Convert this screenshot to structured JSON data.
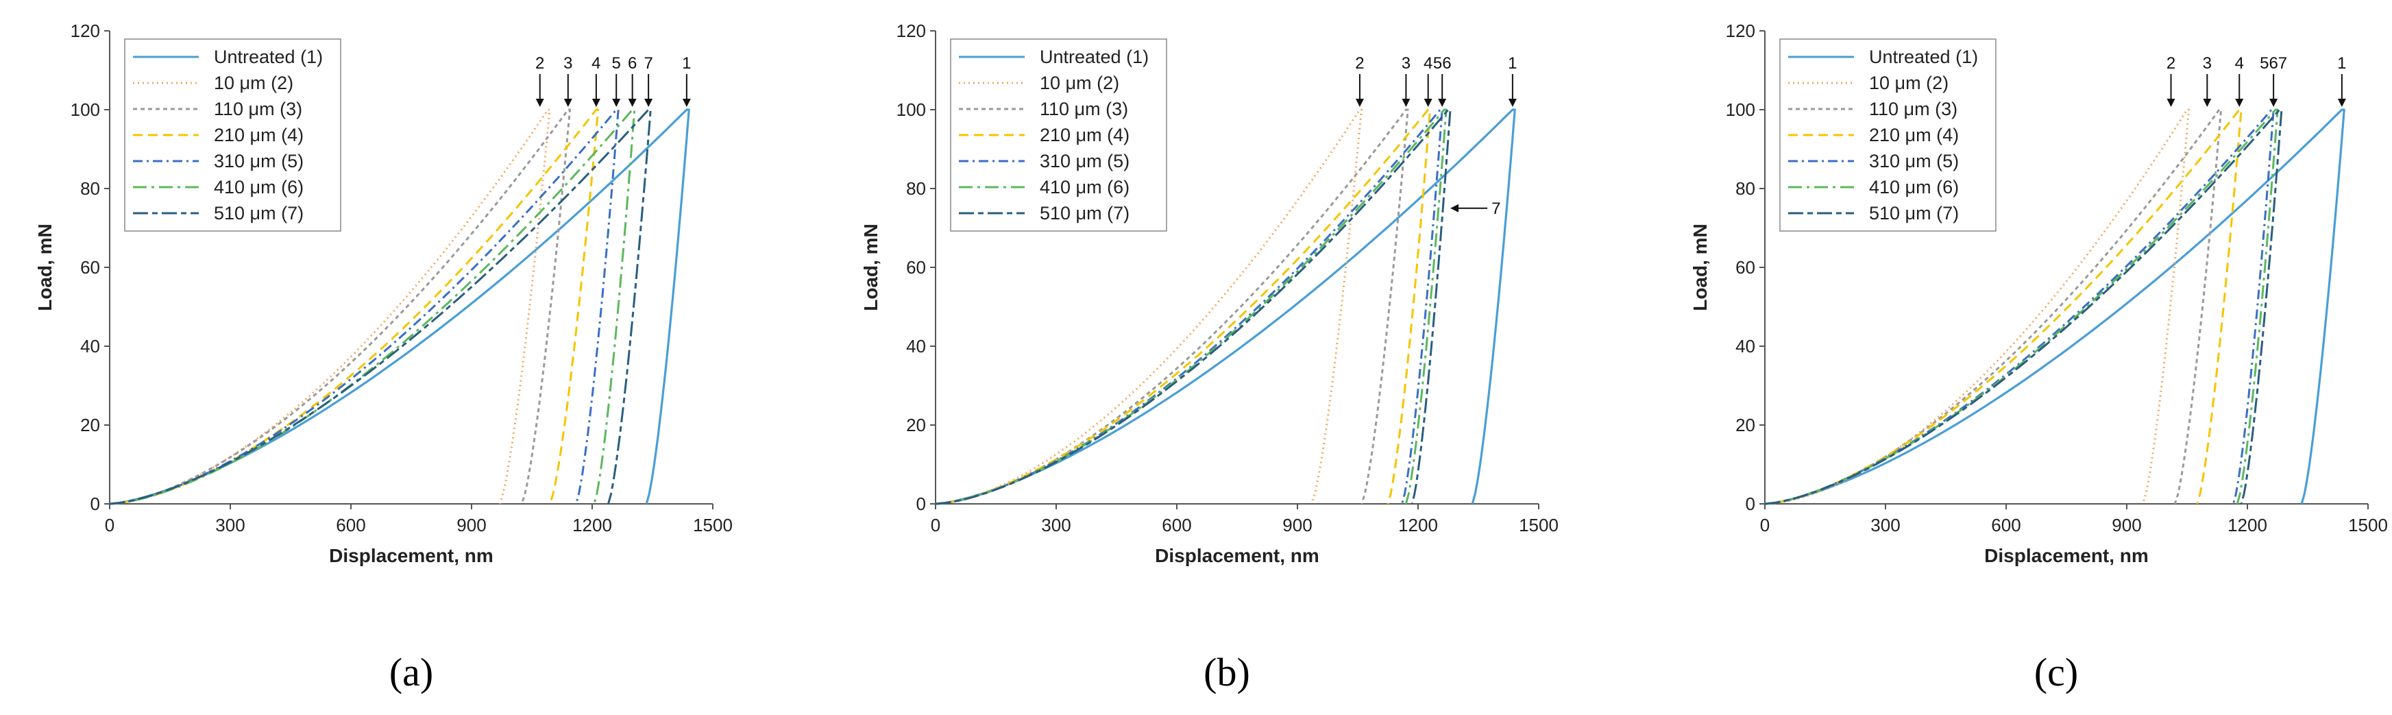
{
  "chart_data": [
    {
      "type": "line",
      "panel_label": "(a)",
      "xlabel": "Displacement, nm",
      "ylabel": "Load, mN",
      "xlim": [
        0,
        1500
      ],
      "ylim": [
        0,
        120
      ],
      "xticks": [
        "0",
        "300",
        "600",
        "900",
        "1200",
        "1500"
      ],
      "yticks": [
        "0",
        "20",
        "40",
        "60",
        "80",
        "100",
        "120"
      ],
      "legend_position": "top-left",
      "series": [
        {
          "name": "Untreated (1)",
          "color": "#4a9ed6",
          "dash": "solid",
          "max_load": 100,
          "max_displacement": 1435,
          "final_displacement": 1335,
          "loading_exponent": 1.45
        },
        {
          "name": "10 μm (2)",
          "color": "#f0a860",
          "dash": "dot",
          "max_load": 100,
          "max_displacement": 1090,
          "final_displacement": 970,
          "loading_exponent": 1.65
        },
        {
          "name": "110 μm (3)",
          "color": "#9a9a9a",
          "dash": "shortdash",
          "max_load": 100,
          "max_displacement": 1140,
          "final_displacement": 1025,
          "loading_exponent": 1.6
        },
        {
          "name": "210 μm (4)",
          "color": "#f5c400",
          "dash": "dash",
          "max_load": 100,
          "max_displacement": 1210,
          "final_displacement": 1095,
          "loading_exponent": 1.6
        },
        {
          "name": "310 μm (5)",
          "color": "#3a6fc4",
          "dash": "dashdot",
          "max_load": 100,
          "max_displacement": 1260,
          "final_displacement": 1160,
          "loading_exponent": 1.55
        },
        {
          "name": "410 μm (6)",
          "color": "#5cb85c",
          "dash": "longdashdot",
          "max_load": 100,
          "max_displacement": 1300,
          "final_displacement": 1205,
          "loading_exponent": 1.55
        },
        {
          "name": "510 μm (7)",
          "color": "#2a5e80",
          "dash": "longdash",
          "max_load": 100,
          "max_displacement": 1340,
          "final_displacement": 1240,
          "loading_exponent": 1.5
        }
      ],
      "annotations": [
        {
          "label": "2",
          "x": 1070,
          "y": 100
        },
        {
          "label": "3",
          "x": 1140,
          "y": 100
        },
        {
          "label": "4",
          "x": 1210,
          "y": 100
        },
        {
          "label": "5",
          "x": 1260,
          "y": 100
        },
        {
          "label": "6",
          "x": 1300,
          "y": 100
        },
        {
          "label": "7",
          "x": 1340,
          "y": 100
        },
        {
          "label": "1",
          "x": 1435,
          "y": 100
        }
      ]
    },
    {
      "type": "line",
      "panel_label": "(b)",
      "xlabel": "Displacement, nm",
      "ylabel": "Load, mN",
      "xlim": [
        0,
        1500
      ],
      "ylim": [
        0,
        120
      ],
      "xticks": [
        "0",
        "300",
        "600",
        "900",
        "1200",
        "1500"
      ],
      "yticks": [
        "0",
        "20",
        "40",
        "60",
        "80",
        "100",
        "120"
      ],
      "legend_position": "top-left",
      "series": [
        {
          "name": "Untreated (1)",
          "color": "#4a9ed6",
          "dash": "solid",
          "max_load": 100,
          "max_displacement": 1435,
          "final_displacement": 1335,
          "loading_exponent": 1.45
        },
        {
          "name": "10 μm (2)",
          "color": "#f0a860",
          "dash": "dot",
          "max_load": 100,
          "max_displacement": 1055,
          "final_displacement": 935,
          "loading_exponent": 1.65
        },
        {
          "name": "110 μm (3)",
          "color": "#9a9a9a",
          "dash": "shortdash",
          "max_load": 100,
          "max_displacement": 1170,
          "final_displacement": 1060,
          "loading_exponent": 1.6
        },
        {
          "name": "210 μm (4)",
          "color": "#f5c400",
          "dash": "dash",
          "max_load": 100,
          "max_displacement": 1225,
          "final_displacement": 1125,
          "loading_exponent": 1.55
        },
        {
          "name": "310 μm (5)",
          "color": "#3a6fc4",
          "dash": "dashdot",
          "max_load": 100,
          "max_displacement": 1255,
          "final_displacement": 1160,
          "loading_exponent": 1.55
        },
        {
          "name": "410 μm (6)",
          "color": "#5cb85c",
          "dash": "longdashdot",
          "max_load": 100,
          "max_displacement": 1265,
          "final_displacement": 1170,
          "loading_exponent": 1.55
        },
        {
          "name": "510 μm (7)",
          "color": "#2a5e80",
          "dash": "longdash",
          "max_load": 100,
          "max_displacement": 1275,
          "final_displacement": 1185,
          "loading_exponent": 1.55
        }
      ],
      "annotations": [
        {
          "label": "2",
          "x": 1055,
          "y": 100
        },
        {
          "label": "3",
          "x": 1170,
          "y": 100
        },
        {
          "label": "4",
          "x": 1225,
          "y": 100
        },
        {
          "label": "56",
          "x": 1260,
          "y": 100
        },
        {
          "label": "1",
          "x": 1435,
          "y": 100
        },
        {
          "label": "7",
          "x": 1270,
          "y": 75,
          "side": "right"
        }
      ]
    },
    {
      "type": "line",
      "panel_label": "(c)",
      "xlabel": "Displacement, nm",
      "ylabel": "Load, mN",
      "xlim": [
        0,
        1500
      ],
      "ylim": [
        0,
        120
      ],
      "xticks": [
        "0",
        "300",
        "600",
        "900",
        "1200",
        "1500"
      ],
      "yticks": [
        "0",
        "20",
        "40",
        "60",
        "80",
        "100",
        "120"
      ],
      "legend_position": "top-left",
      "series": [
        {
          "name": "Untreated (1)",
          "color": "#4a9ed6",
          "dash": "solid",
          "max_load": 100,
          "max_displacement": 1435,
          "final_displacement": 1335,
          "loading_exponent": 1.45
        },
        {
          "name": "10 μm (2)",
          "color": "#f0a860",
          "dash": "dot",
          "max_load": 100,
          "max_displacement": 1050,
          "final_displacement": 940,
          "loading_exponent": 1.7
        },
        {
          "name": "110 μm (3)",
          "color": "#9a9a9a",
          "dash": "shortdash",
          "max_load": 100,
          "max_displacement": 1130,
          "final_displacement": 1020,
          "loading_exponent": 1.6
        },
        {
          "name": "210 μm (4)",
          "color": "#f5c400",
          "dash": "dash",
          "max_load": 100,
          "max_displacement": 1180,
          "final_displacement": 1075,
          "loading_exponent": 1.55
        },
        {
          "name": "310 μm (5)",
          "color": "#3a6fc4",
          "dash": "dashdot",
          "max_load": 100,
          "max_displacement": 1260,
          "final_displacement": 1165,
          "loading_exponent": 1.5
        },
        {
          "name": "410 μm (6)",
          "color": "#5cb85c",
          "dash": "longdashdot",
          "max_load": 100,
          "max_displacement": 1270,
          "final_displacement": 1175,
          "loading_exponent": 1.5
        },
        {
          "name": "510 μm (7)",
          "color": "#2a5e80",
          "dash": "longdash",
          "max_load": 100,
          "max_displacement": 1280,
          "final_displacement": 1185,
          "loading_exponent": 1.5
        }
      ],
      "annotations": [
        {
          "label": "2",
          "x": 1010,
          "y": 100
        },
        {
          "label": "3",
          "x": 1100,
          "y": 100
        },
        {
          "label": "4",
          "x": 1180,
          "y": 100
        },
        {
          "label": "567",
          "x": 1265,
          "y": 100
        },
        {
          "label": "1",
          "x": 1435,
          "y": 100
        }
      ]
    }
  ]
}
